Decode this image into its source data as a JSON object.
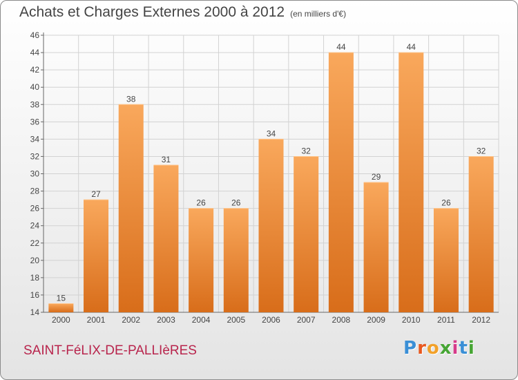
{
  "header": {
    "title": "Achats et Charges Externes 2000 à 2012",
    "unit": "(en milliers d'€)"
  },
  "footer": {
    "commune": "SAINT-FéLIX-DE-PALLIèRES",
    "logo_letters": [
      "P",
      "r",
      "o",
      "x",
      "i",
      "t",
      "i"
    ],
    "logo_colors": [
      "#3a8fd6",
      "#e8581f",
      "#f2a12a",
      "#46a534",
      "#d63b8a",
      "#3a8fd6",
      "#46a534"
    ]
  },
  "chart_data": {
    "type": "bar",
    "title": "Achats et Charges Externes 2000 à 2012",
    "subtitle": "(en milliers d'€)",
    "categories": [
      "2000",
      "2001",
      "2002",
      "2003",
      "2004",
      "2005",
      "2006",
      "2007",
      "2008",
      "2009",
      "2010",
      "2011",
      "2012"
    ],
    "values": [
      15,
      27,
      38,
      31,
      26,
      26,
      34,
      32,
      44,
      29,
      44,
      26,
      32
    ],
    "ylim": [
      14,
      46
    ],
    "yticks": [
      14,
      16,
      18,
      20,
      22,
      24,
      26,
      28,
      30,
      32,
      34,
      36,
      38,
      40,
      42,
      44,
      46
    ],
    "grid": true,
    "data_labels": true,
    "colors": {
      "bar_light": "#f9a85c",
      "bar_dark": "#d86d1a"
    }
  }
}
